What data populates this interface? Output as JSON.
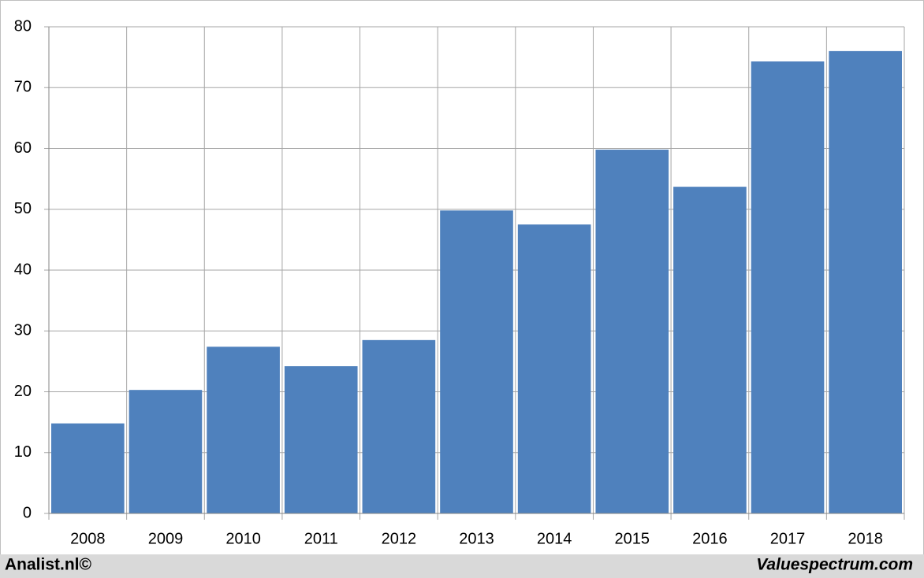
{
  "chart_data": {
    "type": "bar",
    "categories": [
      "2008",
      "2009",
      "2010",
      "2011",
      "2012",
      "2013",
      "2014",
      "2015",
      "2016",
      "2017",
      "2018"
    ],
    "values": [
      14.8,
      20.3,
      27.4,
      24.2,
      28.5,
      49.8,
      47.5,
      59.8,
      53.7,
      74.3,
      76.0
    ],
    "color": "#4f81bd",
    "ylim": [
      0,
      80
    ],
    "yticks": [
      0,
      10,
      20,
      30,
      40,
      50,
      60,
      70,
      80
    ],
    "grid": true,
    "footer_left": "Analist.nl©",
    "footer_right": "Valuespectrum.com"
  }
}
